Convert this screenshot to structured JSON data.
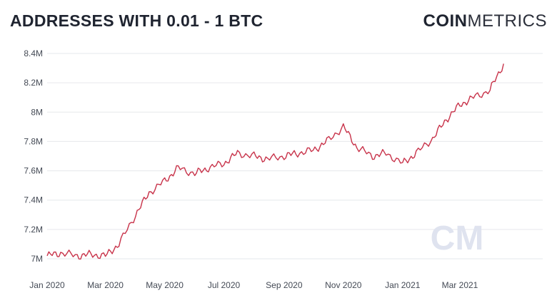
{
  "header": {
    "title": "ADDRESSES WITH 0.01 - 1 BTC",
    "logo_bold": "COIN",
    "logo_light": "METRICS"
  },
  "watermark": "CM",
  "colors": {
    "line": "#c8334a",
    "grid": "#e6e8ec",
    "text": "#1f2430"
  },
  "chart_data": {
    "type": "line",
    "title": "ADDRESSES WITH 0.01 - 1 BTC",
    "xlabel": "",
    "ylabel": "",
    "ylim": [
      7.0,
      8.4
    ],
    "y_ticks": [
      "7M",
      "7.2M",
      "7.4M",
      "7.6M",
      "7.8M",
      "8M",
      "8.2M",
      "8.4M"
    ],
    "y_tick_values": [
      7.0,
      7.2,
      7.4,
      7.6,
      7.8,
      8.0,
      8.2,
      8.4
    ],
    "x_ticks": [
      "Jan 2020",
      "Mar 2020",
      "May 2020",
      "Jul 2020",
      "Sep 2020",
      "Nov 2020",
      "Jan 2021",
      "Mar 2021"
    ],
    "x_tick_dates": [
      "2020-01-01",
      "2020-03-01",
      "2020-05-01",
      "2020-07-01",
      "2020-09-01",
      "2020-11-01",
      "2021-01-01",
      "2021-03-01"
    ],
    "grid": true,
    "series": [
      {
        "values_unit": "millions of addresses",
        "x": [
          "2020-01-01",
          "2020-01-15",
          "2020-02-01",
          "2020-02-15",
          "2020-03-01",
          "2020-03-15",
          "2020-04-01",
          "2020-04-15",
          "2020-05-01",
          "2020-05-15",
          "2020-06-01",
          "2020-06-15",
          "2020-07-01",
          "2020-07-15",
          "2020-08-01",
          "2020-08-15",
          "2020-09-01",
          "2020-09-15",
          "2020-10-01",
          "2020-10-15",
          "2020-11-01",
          "2020-11-15",
          "2020-12-01",
          "2020-12-15",
          "2021-01-01",
          "2021-01-15",
          "2021-02-01",
          "2021-02-15",
          "2021-03-01",
          "2021-03-15",
          "2021-04-01",
          "2021-04-15"
        ],
        "y": [
          7.02,
          7.04,
          7.02,
          7.03,
          7.02,
          7.1,
          7.3,
          7.45,
          7.53,
          7.62,
          7.58,
          7.62,
          7.65,
          7.72,
          7.7,
          7.68,
          7.7,
          7.72,
          7.74,
          7.8,
          7.9,
          7.76,
          7.7,
          7.72,
          7.65,
          7.72,
          7.82,
          7.95,
          8.05,
          8.1,
          8.15,
          8.33
        ]
      }
    ]
  }
}
